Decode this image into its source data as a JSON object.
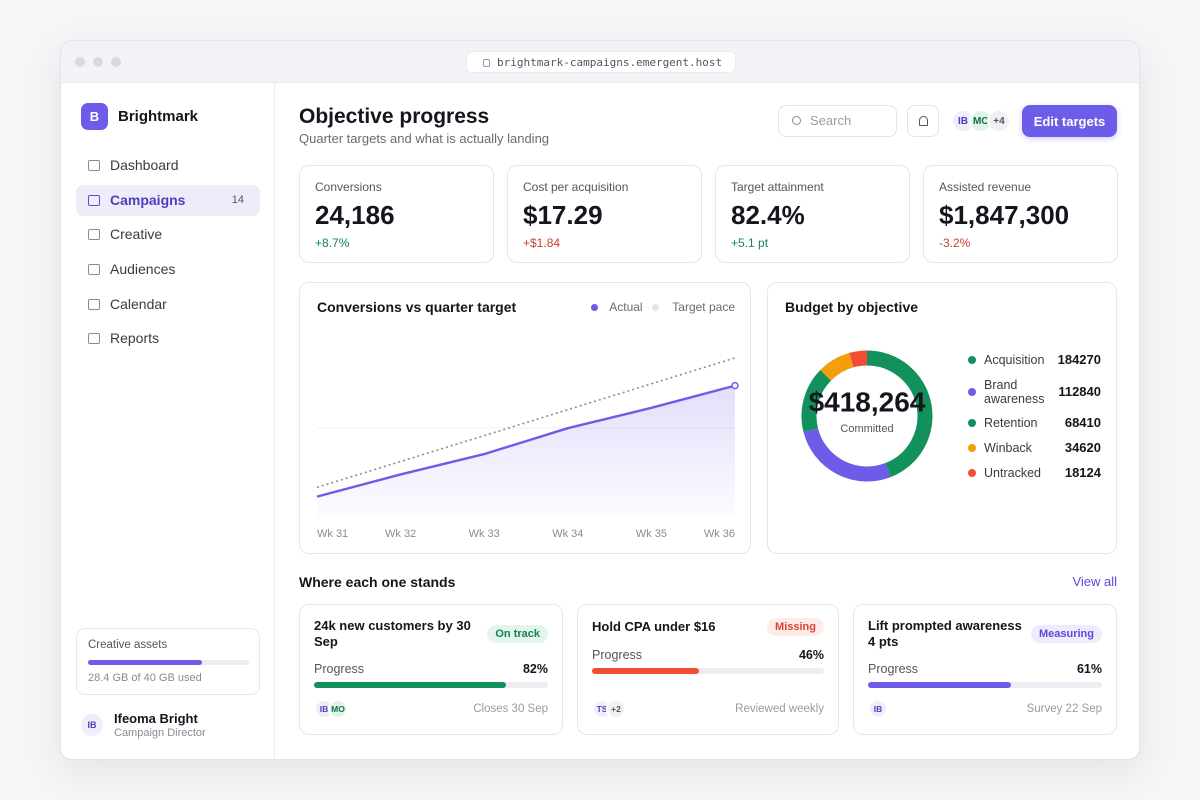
{
  "browser": {
    "url": "brightmark-campaigns.emergent.host"
  },
  "sidebar": {
    "brand_initial": "B",
    "brand": "Brightmark",
    "nav": [
      {
        "label": "Dashboard"
      },
      {
        "label": "Campaigns",
        "badge": 14,
        "active": true
      },
      {
        "label": "Creative"
      },
      {
        "label": "Audiences"
      },
      {
        "label": "Calendar"
      },
      {
        "label": "Reports"
      }
    ],
    "storage": {
      "title": "Creative assets",
      "text": "28.4 GB of 40 GB used",
      "used": 28.4,
      "total": 40
    },
    "user": {
      "initials": "IB",
      "name": "Ifeoma Bright",
      "role": "Campaign Director"
    }
  },
  "header": {
    "title": "Objective progress",
    "subtitle": "Quarter targets and what is actually landing",
    "search_placeholder": "Search",
    "avatars": [
      "IB",
      "MO"
    ],
    "avatar_more": "+4",
    "button": "Edit targets"
  },
  "kpis": [
    {
      "label": "Conversions",
      "value": "24,186",
      "delta": "+8.7%",
      "delta_color": "#17855a"
    },
    {
      "label": "Cost per acquisition",
      "value": "$17.29",
      "delta": "+$1.84",
      "delta_color": "#c8412e"
    },
    {
      "label": "Target attainment",
      "value": "82.4%",
      "delta": "+5.1 pt",
      "delta_color": "#17855a"
    },
    {
      "label": "Assisted revenue",
      "value": "$1,847,300",
      "delta": "-3.2%",
      "delta_color": "#c8412e"
    }
  ],
  "chart_data": [
    {
      "type": "line",
      "title": "Conversions vs quarter target",
      "categories": [
        "Wk 31",
        "Wk 32",
        "Wk 33",
        "Wk 34",
        "Wk 35",
        "Wk 36"
      ],
      "ylim": [
        0,
        100
      ],
      "series": [
        {
          "name": "Actual",
          "color": "#6c5ce7",
          "values": [
            11,
            23,
            34,
            48,
            59,
            71
          ],
          "area": true
        },
        {
          "name": "Target pace",
          "color": "#8c8c96",
          "values": [
            16,
            30,
            44,
            58,
            72,
            86
          ],
          "dotted": true
        }
      ]
    },
    {
      "type": "donut",
      "title": "Budget by objective",
      "center_value": "$418,264",
      "center_label": "Committed",
      "categories": [
        "Acquisition",
        "Brand awareness",
        "Retention",
        "Winback",
        "Untracked"
      ],
      "values": [
        184270,
        112840,
        68410,
        34620,
        18124
      ],
      "colors": [
        "#12915c",
        "#6c5ce7",
        "#12915c",
        "#f59e0b",
        "#f04e37"
      ]
    }
  ],
  "goals": {
    "title": "Where each one stands",
    "link": "View all",
    "cards": [
      {
        "title": "24k new customers by 30 Sep",
        "status": "On track",
        "status_bg": "#e4f5ec",
        "status_color": "#12805a",
        "progress_caption": "Progress",
        "progress": 82,
        "progress_label": "82%",
        "color": "#12915c",
        "avatars": [
          "IB",
          "MO"
        ],
        "footer": "Closes 30 Sep"
      },
      {
        "title": "Hold CPA under $16",
        "status": "Missing",
        "status_bg": "#fdece9",
        "status_color": "#d64531",
        "progress_caption": "Progress",
        "progress": 46,
        "progress_label": "46%",
        "color": "#f04e37",
        "avatars": [
          "TS"
        ],
        "avatar_more": "+2",
        "footer": "Reviewed weekly"
      },
      {
        "title": "Lift prompted awareness 4 pts",
        "status": "Measuring",
        "status_bg": "#eeecfc",
        "status_color": "#5b4bd8",
        "progress_caption": "Progress",
        "progress": 61,
        "progress_label": "61%",
        "color": "#6c5ce7",
        "avatars": [
          "IB"
        ],
        "footer": "Survey 22 Sep"
      }
    ]
  }
}
